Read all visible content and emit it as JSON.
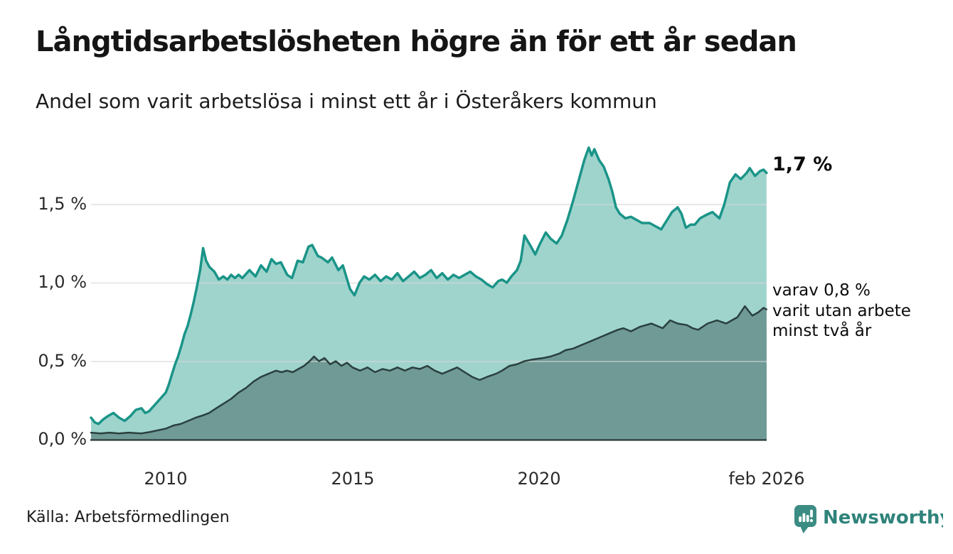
{
  "title": "Långtidsarbetslösheten högre än för ett år sedan",
  "subtitle": "Andel som varit arbetslösa i minst ett år i Österåkers kommun",
  "source": "Källa: Arbetsförmedlingen",
  "branding": {
    "name": "Newsworthy",
    "icon": "newsworthy-chart-speech-bubble",
    "icon_color": "#3b8c83",
    "text_color": "#2f837a"
  },
  "annotations": {
    "latest_total": "1,7 %",
    "sub_lines": [
      "varav 0,8 %",
      "varit utan arbete",
      "minst två år"
    ]
  },
  "chart_data": {
    "type": "area",
    "title": "Långtidsarbetslösheten högre än för ett år sedan",
    "xlabel": "",
    "ylabel": "",
    "x_domain": [
      2008.0,
      2026.083
    ],
    "ylim": [
      0,
      1.95
    ],
    "grid": "horizontal",
    "grid_color": "#d7d7d7",
    "axis_color": "#2c3a39",
    "y_ticks": [
      {
        "value": 0.0,
        "label": "0,0 %"
      },
      {
        "value": 0.5,
        "label": "0,5 %"
      },
      {
        "value": 1.0,
        "label": "1,0 %"
      },
      {
        "value": 1.5,
        "label": "1,5 %"
      }
    ],
    "x_ticks": [
      {
        "value": 2010,
        "label": "2010"
      },
      {
        "value": 2015,
        "label": "2015"
      },
      {
        "value": 2020,
        "label": "2020"
      },
      {
        "value": 2026.083,
        "label": "feb 2026"
      }
    ],
    "series": [
      {
        "name": "Arbetslösa minst ett år",
        "end_label": "1,7 %",
        "stroke": "#1a9488",
        "fill": "#9fd4cd",
        "stroke_width": 3.5,
        "points": [
          [
            2008.0,
            0.14
          ],
          [
            2008.1,
            0.11
          ],
          [
            2008.2,
            0.1
          ],
          [
            2008.33,
            0.13
          ],
          [
            2008.45,
            0.15
          ],
          [
            2008.6,
            0.17
          ],
          [
            2008.75,
            0.14
          ],
          [
            2008.9,
            0.12
          ],
          [
            2009.05,
            0.15
          ],
          [
            2009.2,
            0.19
          ],
          [
            2009.35,
            0.2
          ],
          [
            2009.45,
            0.17
          ],
          [
            2009.55,
            0.18
          ],
          [
            2009.7,
            0.22
          ],
          [
            2009.85,
            0.26
          ],
          [
            2010.0,
            0.3
          ],
          [
            2010.08,
            0.35
          ],
          [
            2010.17,
            0.42
          ],
          [
            2010.25,
            0.48
          ],
          [
            2010.33,
            0.53
          ],
          [
            2010.42,
            0.6
          ],
          [
            2010.5,
            0.67
          ],
          [
            2010.58,
            0.72
          ],
          [
            2010.67,
            0.8
          ],
          [
            2010.75,
            0.88
          ],
          [
            2010.83,
            0.97
          ],
          [
            2010.92,
            1.08
          ],
          [
            2011.0,
            1.22
          ],
          [
            2011.08,
            1.14
          ],
          [
            2011.17,
            1.1
          ],
          [
            2011.3,
            1.07
          ],
          [
            2011.42,
            1.02
          ],
          [
            2011.54,
            1.04
          ],
          [
            2011.65,
            1.02
          ],
          [
            2011.75,
            1.05
          ],
          [
            2011.85,
            1.03
          ],
          [
            2011.95,
            1.05
          ],
          [
            2012.05,
            1.03
          ],
          [
            2012.24,
            1.08
          ],
          [
            2012.4,
            1.04
          ],
          [
            2012.55,
            1.11
          ],
          [
            2012.7,
            1.07
          ],
          [
            2012.83,
            1.15
          ],
          [
            2012.95,
            1.12
          ],
          [
            2013.08,
            1.13
          ],
          [
            2013.25,
            1.05
          ],
          [
            2013.38,
            1.03
          ],
          [
            2013.53,
            1.14
          ],
          [
            2013.67,
            1.13
          ],
          [
            2013.82,
            1.23
          ],
          [
            2013.92,
            1.24
          ],
          [
            2014.07,
            1.17
          ],
          [
            2014.17,
            1.16
          ],
          [
            2014.34,
            1.13
          ],
          [
            2014.45,
            1.16
          ],
          [
            2014.62,
            1.08
          ],
          [
            2014.74,
            1.11
          ],
          [
            2014.93,
            0.96
          ],
          [
            2015.05,
            0.92
          ],
          [
            2015.19,
            1.0
          ],
          [
            2015.31,
            1.04
          ],
          [
            2015.45,
            1.02
          ],
          [
            2015.6,
            1.05
          ],
          [
            2015.75,
            1.01
          ],
          [
            2015.9,
            1.04
          ],
          [
            2016.05,
            1.02
          ],
          [
            2016.2,
            1.06
          ],
          [
            2016.35,
            1.01
          ],
          [
            2016.5,
            1.04
          ],
          [
            2016.65,
            1.07
          ],
          [
            2016.8,
            1.03
          ],
          [
            2016.95,
            1.05
          ],
          [
            2017.1,
            1.08
          ],
          [
            2017.25,
            1.03
          ],
          [
            2017.4,
            1.06
          ],
          [
            2017.55,
            1.02
          ],
          [
            2017.7,
            1.05
          ],
          [
            2017.85,
            1.03
          ],
          [
            2018.0,
            1.05
          ],
          [
            2018.15,
            1.07
          ],
          [
            2018.3,
            1.04
          ],
          [
            2018.45,
            1.02
          ],
          [
            2018.6,
            0.99
          ],
          [
            2018.75,
            0.97
          ],
          [
            2018.9,
            1.01
          ],
          [
            2019.0,
            1.02
          ],
          [
            2019.13,
            1.0
          ],
          [
            2019.25,
            1.04
          ],
          [
            2019.4,
            1.08
          ],
          [
            2019.5,
            1.14
          ],
          [
            2019.6,
            1.3
          ],
          [
            2019.75,
            1.24
          ],
          [
            2019.89,
            1.18
          ],
          [
            2020.0,
            1.24
          ],
          [
            2020.17,
            1.32
          ],
          [
            2020.3,
            1.28
          ],
          [
            2020.46,
            1.25
          ],
          [
            2020.6,
            1.3
          ],
          [
            2020.75,
            1.4
          ],
          [
            2020.9,
            1.52
          ],
          [
            2021.05,
            1.65
          ],
          [
            2021.2,
            1.78
          ],
          [
            2021.32,
            1.86
          ],
          [
            2021.4,
            1.81
          ],
          [
            2021.47,
            1.85
          ],
          [
            2021.6,
            1.78
          ],
          [
            2021.72,
            1.74
          ],
          [
            2021.85,
            1.66
          ],
          [
            2021.95,
            1.58
          ],
          [
            2022.05,
            1.48
          ],
          [
            2022.15,
            1.44
          ],
          [
            2022.3,
            1.41
          ],
          [
            2022.45,
            1.42
          ],
          [
            2022.6,
            1.4
          ],
          [
            2022.75,
            1.38
          ],
          [
            2022.95,
            1.38
          ],
          [
            2023.1,
            1.36
          ],
          [
            2023.26,
            1.34
          ],
          [
            2023.42,
            1.4
          ],
          [
            2023.55,
            1.45
          ],
          [
            2023.7,
            1.48
          ],
          [
            2023.8,
            1.44
          ],
          [
            2023.92,
            1.35
          ],
          [
            2024.05,
            1.37
          ],
          [
            2024.16,
            1.37
          ],
          [
            2024.3,
            1.41
          ],
          [
            2024.45,
            1.43
          ],
          [
            2024.63,
            1.45
          ],
          [
            2024.82,
            1.41
          ],
          [
            2024.95,
            1.5
          ],
          [
            2025.1,
            1.64
          ],
          [
            2025.25,
            1.69
          ],
          [
            2025.39,
            1.66
          ],
          [
            2025.55,
            1.7
          ],
          [
            2025.63,
            1.73
          ],
          [
            2025.77,
            1.68
          ],
          [
            2025.9,
            1.71
          ],
          [
            2026.0,
            1.72
          ],
          [
            2026.08,
            1.7
          ]
        ]
      },
      {
        "name": "Varav utan arbete minst två år",
        "end_label": "0,8 %",
        "stroke": "#2a403e",
        "fill": "#6f9a96",
        "stroke_width": 2.5,
        "points": [
          [
            2008.0,
            0.045
          ],
          [
            2008.25,
            0.04
          ],
          [
            2008.5,
            0.045
          ],
          [
            2008.75,
            0.04
          ],
          [
            2009.0,
            0.045
          ],
          [
            2009.35,
            0.04
          ],
          [
            2009.6,
            0.05
          ],
          [
            2009.8,
            0.06
          ],
          [
            2010.0,
            0.07
          ],
          [
            2010.2,
            0.09
          ],
          [
            2010.4,
            0.1
          ],
          [
            2010.6,
            0.12
          ],
          [
            2010.8,
            0.14
          ],
          [
            2011.0,
            0.155
          ],
          [
            2011.16,
            0.17
          ],
          [
            2011.35,
            0.2
          ],
          [
            2011.55,
            0.23
          ],
          [
            2011.75,
            0.26
          ],
          [
            2011.95,
            0.3
          ],
          [
            2012.15,
            0.33
          ],
          [
            2012.35,
            0.37
          ],
          [
            2012.55,
            0.4
          ],
          [
            2012.75,
            0.42
          ],
          [
            2012.95,
            0.44
          ],
          [
            2013.1,
            0.43
          ],
          [
            2013.24,
            0.44
          ],
          [
            2013.4,
            0.43
          ],
          [
            2013.55,
            0.45
          ],
          [
            2013.7,
            0.47
          ],
          [
            2013.85,
            0.5
          ],
          [
            2013.97,
            0.53
          ],
          [
            2014.1,
            0.5
          ],
          [
            2014.25,
            0.52
          ],
          [
            2014.4,
            0.48
          ],
          [
            2014.55,
            0.5
          ],
          [
            2014.7,
            0.47
          ],
          [
            2014.85,
            0.49
          ],
          [
            2015.0,
            0.46
          ],
          [
            2015.2,
            0.44
          ],
          [
            2015.4,
            0.46
          ],
          [
            2015.6,
            0.43
          ],
          [
            2015.8,
            0.45
          ],
          [
            2016.0,
            0.44
          ],
          [
            2016.2,
            0.46
          ],
          [
            2016.4,
            0.44
          ],
          [
            2016.6,
            0.46
          ],
          [
            2016.8,
            0.45
          ],
          [
            2017.0,
            0.47
          ],
          [
            2017.2,
            0.44
          ],
          [
            2017.4,
            0.42
          ],
          [
            2017.6,
            0.44
          ],
          [
            2017.8,
            0.46
          ],
          [
            2018.0,
            0.43
          ],
          [
            2018.2,
            0.4
          ],
          [
            2018.4,
            0.38
          ],
          [
            2018.6,
            0.4
          ],
          [
            2018.84,
            0.42
          ],
          [
            2019.0,
            0.44
          ],
          [
            2019.2,
            0.47
          ],
          [
            2019.4,
            0.48
          ],
          [
            2019.6,
            0.5
          ],
          [
            2019.8,
            0.51
          ],
          [
            2020.1,
            0.52
          ],
          [
            2020.3,
            0.53
          ],
          [
            2020.55,
            0.55
          ],
          [
            2020.7,
            0.57
          ],
          [
            2020.9,
            0.58
          ],
          [
            2021.1,
            0.6
          ],
          [
            2021.4,
            0.63
          ],
          [
            2021.6,
            0.65
          ],
          [
            2021.9,
            0.68
          ],
          [
            2022.1,
            0.7
          ],
          [
            2022.25,
            0.71
          ],
          [
            2022.45,
            0.69
          ],
          [
            2022.7,
            0.72
          ],
          [
            2023.0,
            0.74
          ],
          [
            2023.3,
            0.71
          ],
          [
            2023.5,
            0.76
          ],
          [
            2023.7,
            0.74
          ],
          [
            2023.95,
            0.73
          ],
          [
            2024.1,
            0.71
          ],
          [
            2024.25,
            0.7
          ],
          [
            2024.5,
            0.74
          ],
          [
            2024.75,
            0.76
          ],
          [
            2025.0,
            0.74
          ],
          [
            2025.15,
            0.76
          ],
          [
            2025.3,
            0.78
          ],
          [
            2025.5,
            0.85
          ],
          [
            2025.6,
            0.82
          ],
          [
            2025.7,
            0.79
          ],
          [
            2025.85,
            0.81
          ],
          [
            2026.0,
            0.84
          ],
          [
            2026.08,
            0.83
          ]
        ]
      }
    ]
  }
}
